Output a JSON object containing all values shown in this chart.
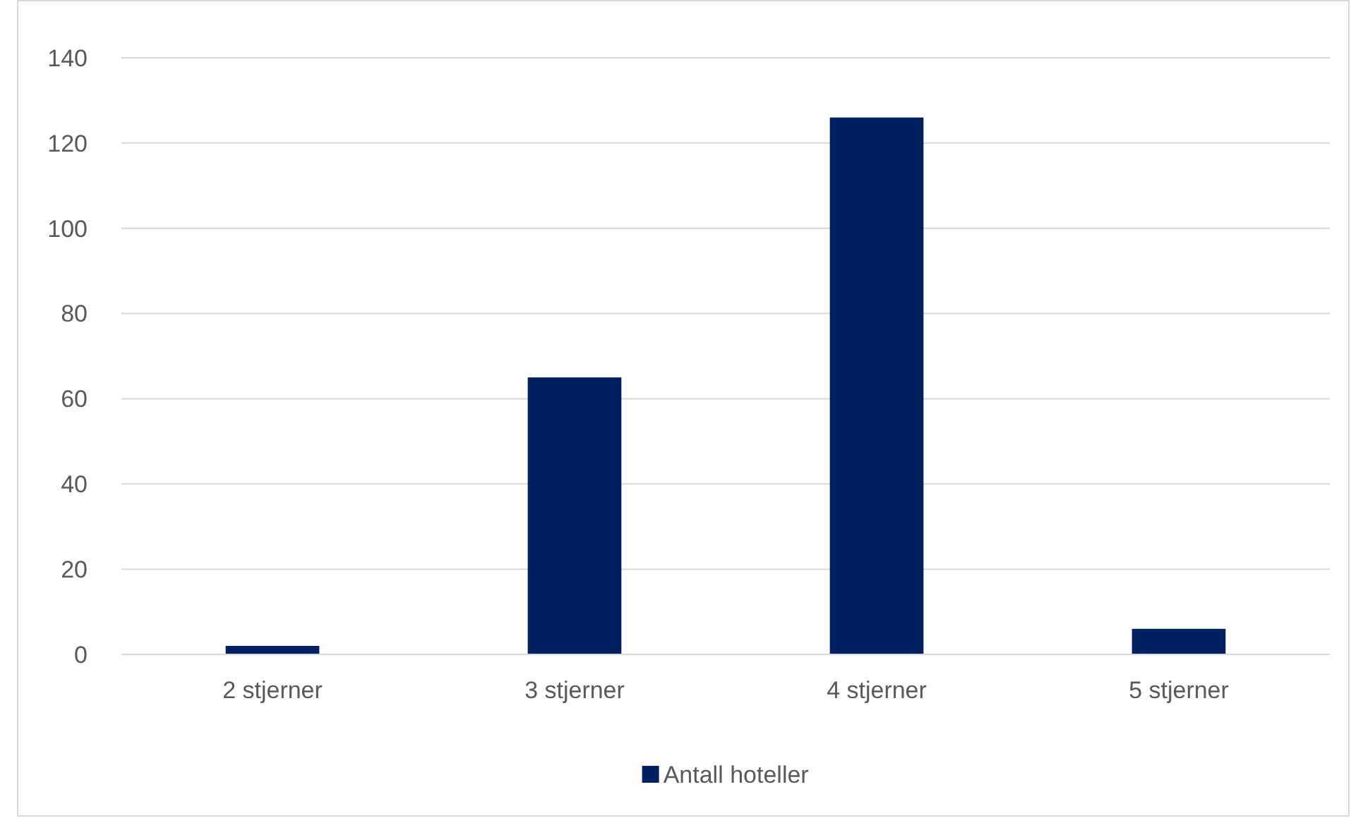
{
  "chart_data": {
    "type": "bar",
    "categories": [
      "2 stjerner",
      "3 stjerner",
      "4 stjerner",
      "5 stjerner"
    ],
    "series": [
      {
        "name": "Antall hoteller",
        "color": "#002060",
        "values": [
          2,
          65,
          126,
          6
        ]
      }
    ],
    "ylim": [
      0,
      140
    ],
    "yticks": [
      0,
      20,
      40,
      60,
      80,
      100,
      120,
      140
    ],
    "grid": "y",
    "legend": "bottom"
  }
}
